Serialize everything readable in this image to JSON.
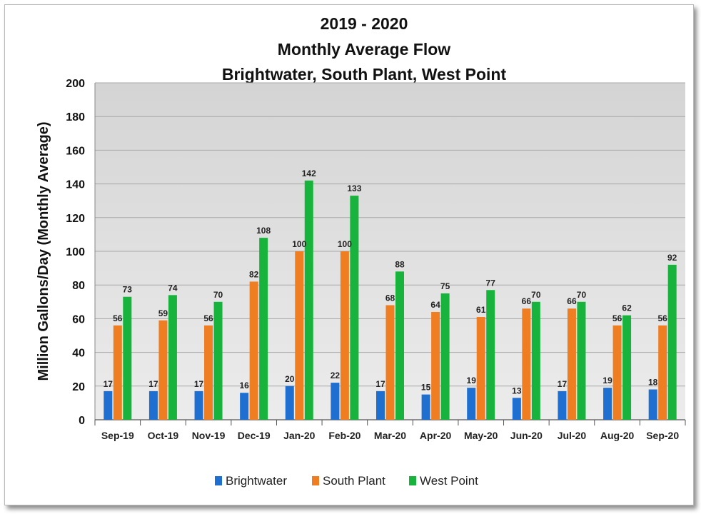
{
  "chart_data": {
    "type": "bar",
    "title": [
      "2019 - 2020",
      "Monthly Average Flow",
      "Brightwater, South Plant, West Point"
    ],
    "ylabel": "Million Gallons/Day (Monthly Average)",
    "xlabel": "",
    "ylim": [
      0,
      200
    ],
    "yticks": [
      0,
      20,
      40,
      60,
      80,
      100,
      120,
      140,
      160,
      180,
      200
    ],
    "grid": true,
    "legend_position": "bottom",
    "categories": [
      "Sep-19",
      "Oct-19",
      "Nov-19",
      "Dec-19",
      "Jan-20",
      "Feb-20",
      "Mar-20",
      "Apr-20",
      "May-20",
      "Jun-20",
      "Jul-20",
      "Aug-20",
      "Sep-20"
    ],
    "series": [
      {
        "name": "Brightwater",
        "color": "#1f6fd1",
        "values": [
          17,
          17,
          17,
          16,
          20,
          22,
          17,
          15,
          19,
          13,
          17,
          19,
          18
        ]
      },
      {
        "name": "South Plant",
        "color": "#ef7d22",
        "values": [
          56,
          59,
          56,
          82,
          100,
          100,
          68,
          64,
          61,
          66,
          66,
          56,
          56
        ]
      },
      {
        "name": "West Point",
        "color": "#17b33c",
        "values": [
          73,
          74,
          70,
          108,
          142,
          133,
          88,
          75,
          77,
          70,
          70,
          62,
          92
        ]
      }
    ]
  }
}
